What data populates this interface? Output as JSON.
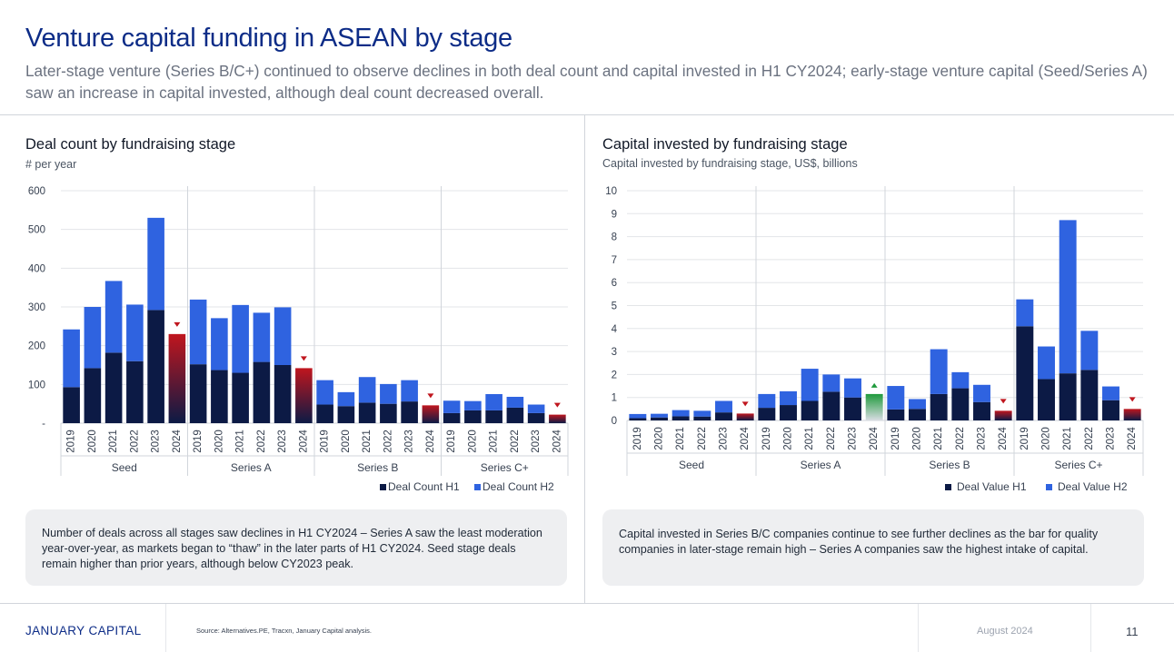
{
  "header": {
    "title": "Venture capital funding in ASEAN by stage",
    "subtitle": "Later-stage venture (Series B/C+) continued to observe declines in both deal count and capital invested in H1 CY2024; early-stage venture capital (Seed/Series A) saw an increase in capital invested, although deal count decreased overall."
  },
  "left": {
    "title": "Deal count by fundraising stage",
    "subtitle": "# per year",
    "note": "Number of deals across all stages saw declines in H1 CY2024 –  Series A saw the least moderation year-over-year, as markets began to “thaw” in the later parts of H1 CY2024. Seed stage deals remain higher than prior years, although below CY2023 peak."
  },
  "right": {
    "title": "Capital invested by fundraising stage",
    "subtitle": "Capital invested by fundraising stage, US$, billions",
    "note": "Capital invested in Series B/C companies continue to see further declines as the bar for quality companies in later-stage remain high – Series A companies saw the highest intake of capital."
  },
  "chart_data": [
    {
      "type": "bar",
      "stacked": true,
      "groups": [
        "Seed",
        "Series A",
        "Series B",
        "Series C+"
      ],
      "years": [
        "2019",
        "2020",
        "2021",
        "2022",
        "2023",
        "2024"
      ],
      "ytick_labels": [
        "-",
        "100",
        "200",
        "300",
        "400",
        "500",
        "600"
      ],
      "ylim": [
        0,
        600
      ],
      "grid": true,
      "legend_position": "bottom-right",
      "series": [
        {
          "name": "Deal Count H1",
          "color": "#0c1a45",
          "values": [
            [
              93,
              142,
              182,
              160,
              292,
              230
            ],
            [
              152,
              137,
              130,
              158,
              150,
              142
            ],
            [
              48,
              44,
              53,
              50,
              56,
              46
            ],
            [
              26,
              33,
              33,
              40,
              26,
              22
            ]
          ]
        },
        {
          "name": "Deal Count H2",
          "color": "#2f63e0",
          "values": [
            [
              149,
              158,
              185,
              146,
              238,
              0
            ],
            [
              167,
              134,
              175,
              127,
              149,
              0
            ],
            [
              63,
              36,
              66,
              51,
              55,
              0
            ],
            [
              32,
              24,
              42,
              28,
              22,
              0
            ]
          ]
        }
      ],
      "markers": [
        {
          "group": "Seed",
          "year": "2024",
          "direction": "down",
          "color": "#c0161e"
        },
        {
          "group": "Series A",
          "year": "2024",
          "direction": "down",
          "color": "#c0161e"
        },
        {
          "group": "Series B",
          "year": "2024",
          "direction": "down",
          "color": "#c0161e"
        },
        {
          "group": "Series C+",
          "year": "2024",
          "direction": "down",
          "color": "#c0161e"
        }
      ]
    },
    {
      "type": "bar",
      "stacked": true,
      "groups": [
        "Seed",
        "Series A",
        "Series B",
        "Series C+"
      ],
      "years": [
        "2019",
        "2020",
        "2021",
        "2022",
        "2023",
        "2024"
      ],
      "ytick_labels": [
        "0",
        "1",
        "2",
        "3",
        "4",
        "5",
        "6",
        "7",
        "8",
        "9",
        "10"
      ],
      "ylim": [
        0,
        10
      ],
      "grid": true,
      "legend_position": "bottom-right",
      "series": [
        {
          "name": "Deal Value H1",
          "color": "#0c1a45",
          "values": [
            [
              0.1,
              0.13,
              0.18,
              0.17,
              0.35,
              0.3
            ],
            [
              0.55,
              0.67,
              0.85,
              1.25,
              1.0,
              1.15
            ],
            [
              0.48,
              0.5,
              1.15,
              1.4,
              0.8,
              0.42
            ],
            [
              4.1,
              1.8,
              2.05,
              2.2,
              0.88,
              0.5
            ]
          ]
        },
        {
          "name": "Deal Value H2",
          "color": "#2f63e0",
          "values": [
            [
              0.18,
              0.16,
              0.27,
              0.25,
              0.5,
              0
            ],
            [
              0.6,
              0.6,
              1.4,
              0.75,
              0.83,
              0
            ],
            [
              1.02,
              0.43,
              1.95,
              0.7,
              0.75,
              0
            ],
            [
              1.17,
              1.42,
              6.67,
              1.7,
              0.6,
              0
            ]
          ]
        }
      ],
      "markers": [
        {
          "group": "Seed",
          "year": "2024",
          "direction": "down",
          "color": "#c0161e"
        },
        {
          "group": "Series A",
          "year": "2024",
          "direction": "up",
          "color": "#1f9a3c"
        },
        {
          "group": "Series B",
          "year": "2024",
          "direction": "down",
          "color": "#c0161e"
        },
        {
          "group": "Series C+",
          "year": "2024",
          "direction": "down",
          "color": "#c0161e"
        }
      ]
    }
  ],
  "footer": {
    "logo": "JANUARY CAPITAL",
    "source": "Source: Alternatives.PE, Tracxn, January Capital analysis.",
    "date": "August 2024",
    "page_number": "11"
  }
}
